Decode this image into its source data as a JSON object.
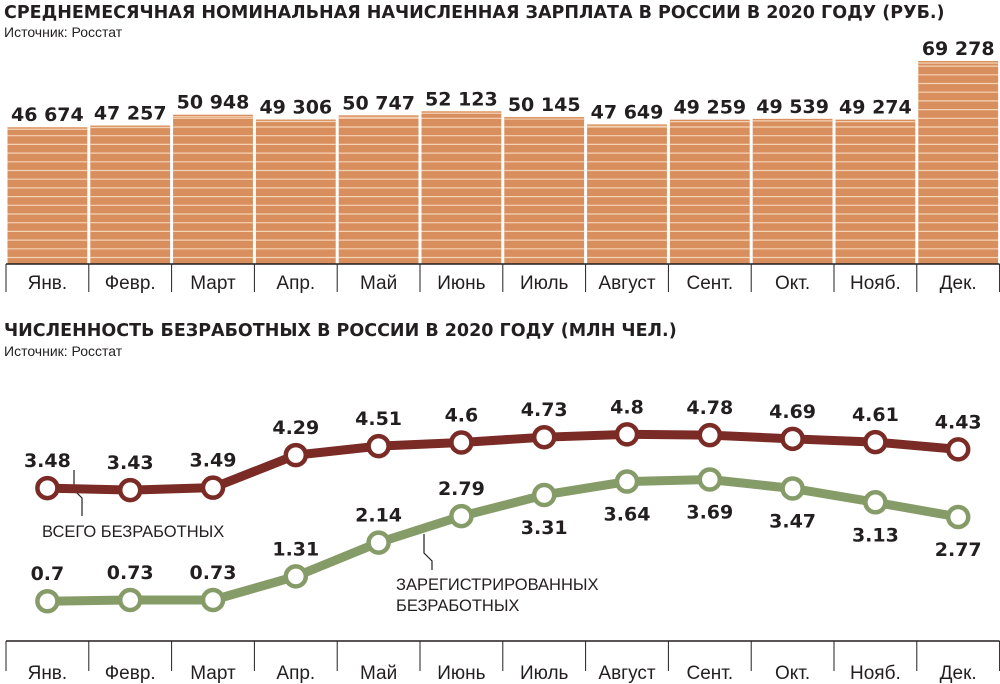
{
  "colors": {
    "bar_fill": "#d98f5d",
    "bar_stripe": "#f3d3b6",
    "total_line": "#7b2b25",
    "registered_line": "#869c68",
    "axis": "#231f20"
  },
  "chart_data": [
    {
      "type": "bar",
      "title": "СРЕДНЕМЕСЯЧНАЯ НОМИНАЛЬНАЯ НАЧИСЛЕННАЯ ЗАРПЛАТА В РОССИИ В 2020 ГОДУ (РУБ.)",
      "subtitle": "Источник: Росстат",
      "categories": [
        "Янв.",
        "Февр.",
        "Март",
        "Апр.",
        "Май",
        "Июнь",
        "Июль",
        "Август",
        "Сент.",
        "Окт.",
        "Нояб.",
        "Дек."
      ],
      "values": [
        46674,
        47257,
        50948,
        49306,
        50747,
        52123,
        50145,
        47649,
        49259,
        49539,
        49274,
        69278
      ],
      "value_labels": [
        "46 674",
        "47 257",
        "50 948",
        "49 306",
        "50 747",
        "52 123",
        "50 145",
        "47 649",
        "49 259",
        "49 539",
        "49 274",
        "69 278"
      ],
      "ylim": [
        0,
        69278
      ],
      "grid": false,
      "legend": "none"
    },
    {
      "type": "line",
      "title": "ЧИСЛЕННОСТЬ БЕЗРАБОТНЫХ В РОССИИ В 2020 ГОДУ (МЛН ЧЕЛ.)",
      "subtitle": "Источник: Росстат",
      "categories": [
        "Янв.",
        "Февр.",
        "Март",
        "Апр.",
        "Май",
        "Июнь",
        "Июль",
        "Август",
        "Сент.",
        "Окт.",
        "Нояб.",
        "Дек."
      ],
      "series": [
        {
          "name": "ВСЕГО БЕЗРАБОТНЫХ",
          "values": [
            3.48,
            3.43,
            3.49,
            4.29,
            4.51,
            4.6,
            4.73,
            4.8,
            4.78,
            4.69,
            4.61,
            4.43
          ],
          "value_labels": [
            "3.48",
            "3.43",
            "3.49",
            "4.29",
            "4.51",
            "4.6",
            "4.73",
            "4.8",
            "4.78",
            "4.69",
            "4.61",
            "4.43"
          ]
        },
        {
          "name_lines": [
            "ЗАРЕГИСТРИРОВАННЫХ",
            "БЕЗРАБОТНЫХ"
          ],
          "values": [
            0.7,
            0.73,
            0.73,
            1.31,
            2.14,
            2.79,
            3.31,
            3.64,
            3.69,
            3.47,
            3.13,
            2.77
          ],
          "value_labels": [
            "0.7",
            "0.73",
            "0.73",
            "1.31",
            "2.14",
            "2.79",
            "3.31",
            "3.64",
            "3.69",
            "3.47",
            "3.13",
            "2.77"
          ]
        }
      ],
      "grid": false,
      "legend": "inline annotations"
    }
  ]
}
